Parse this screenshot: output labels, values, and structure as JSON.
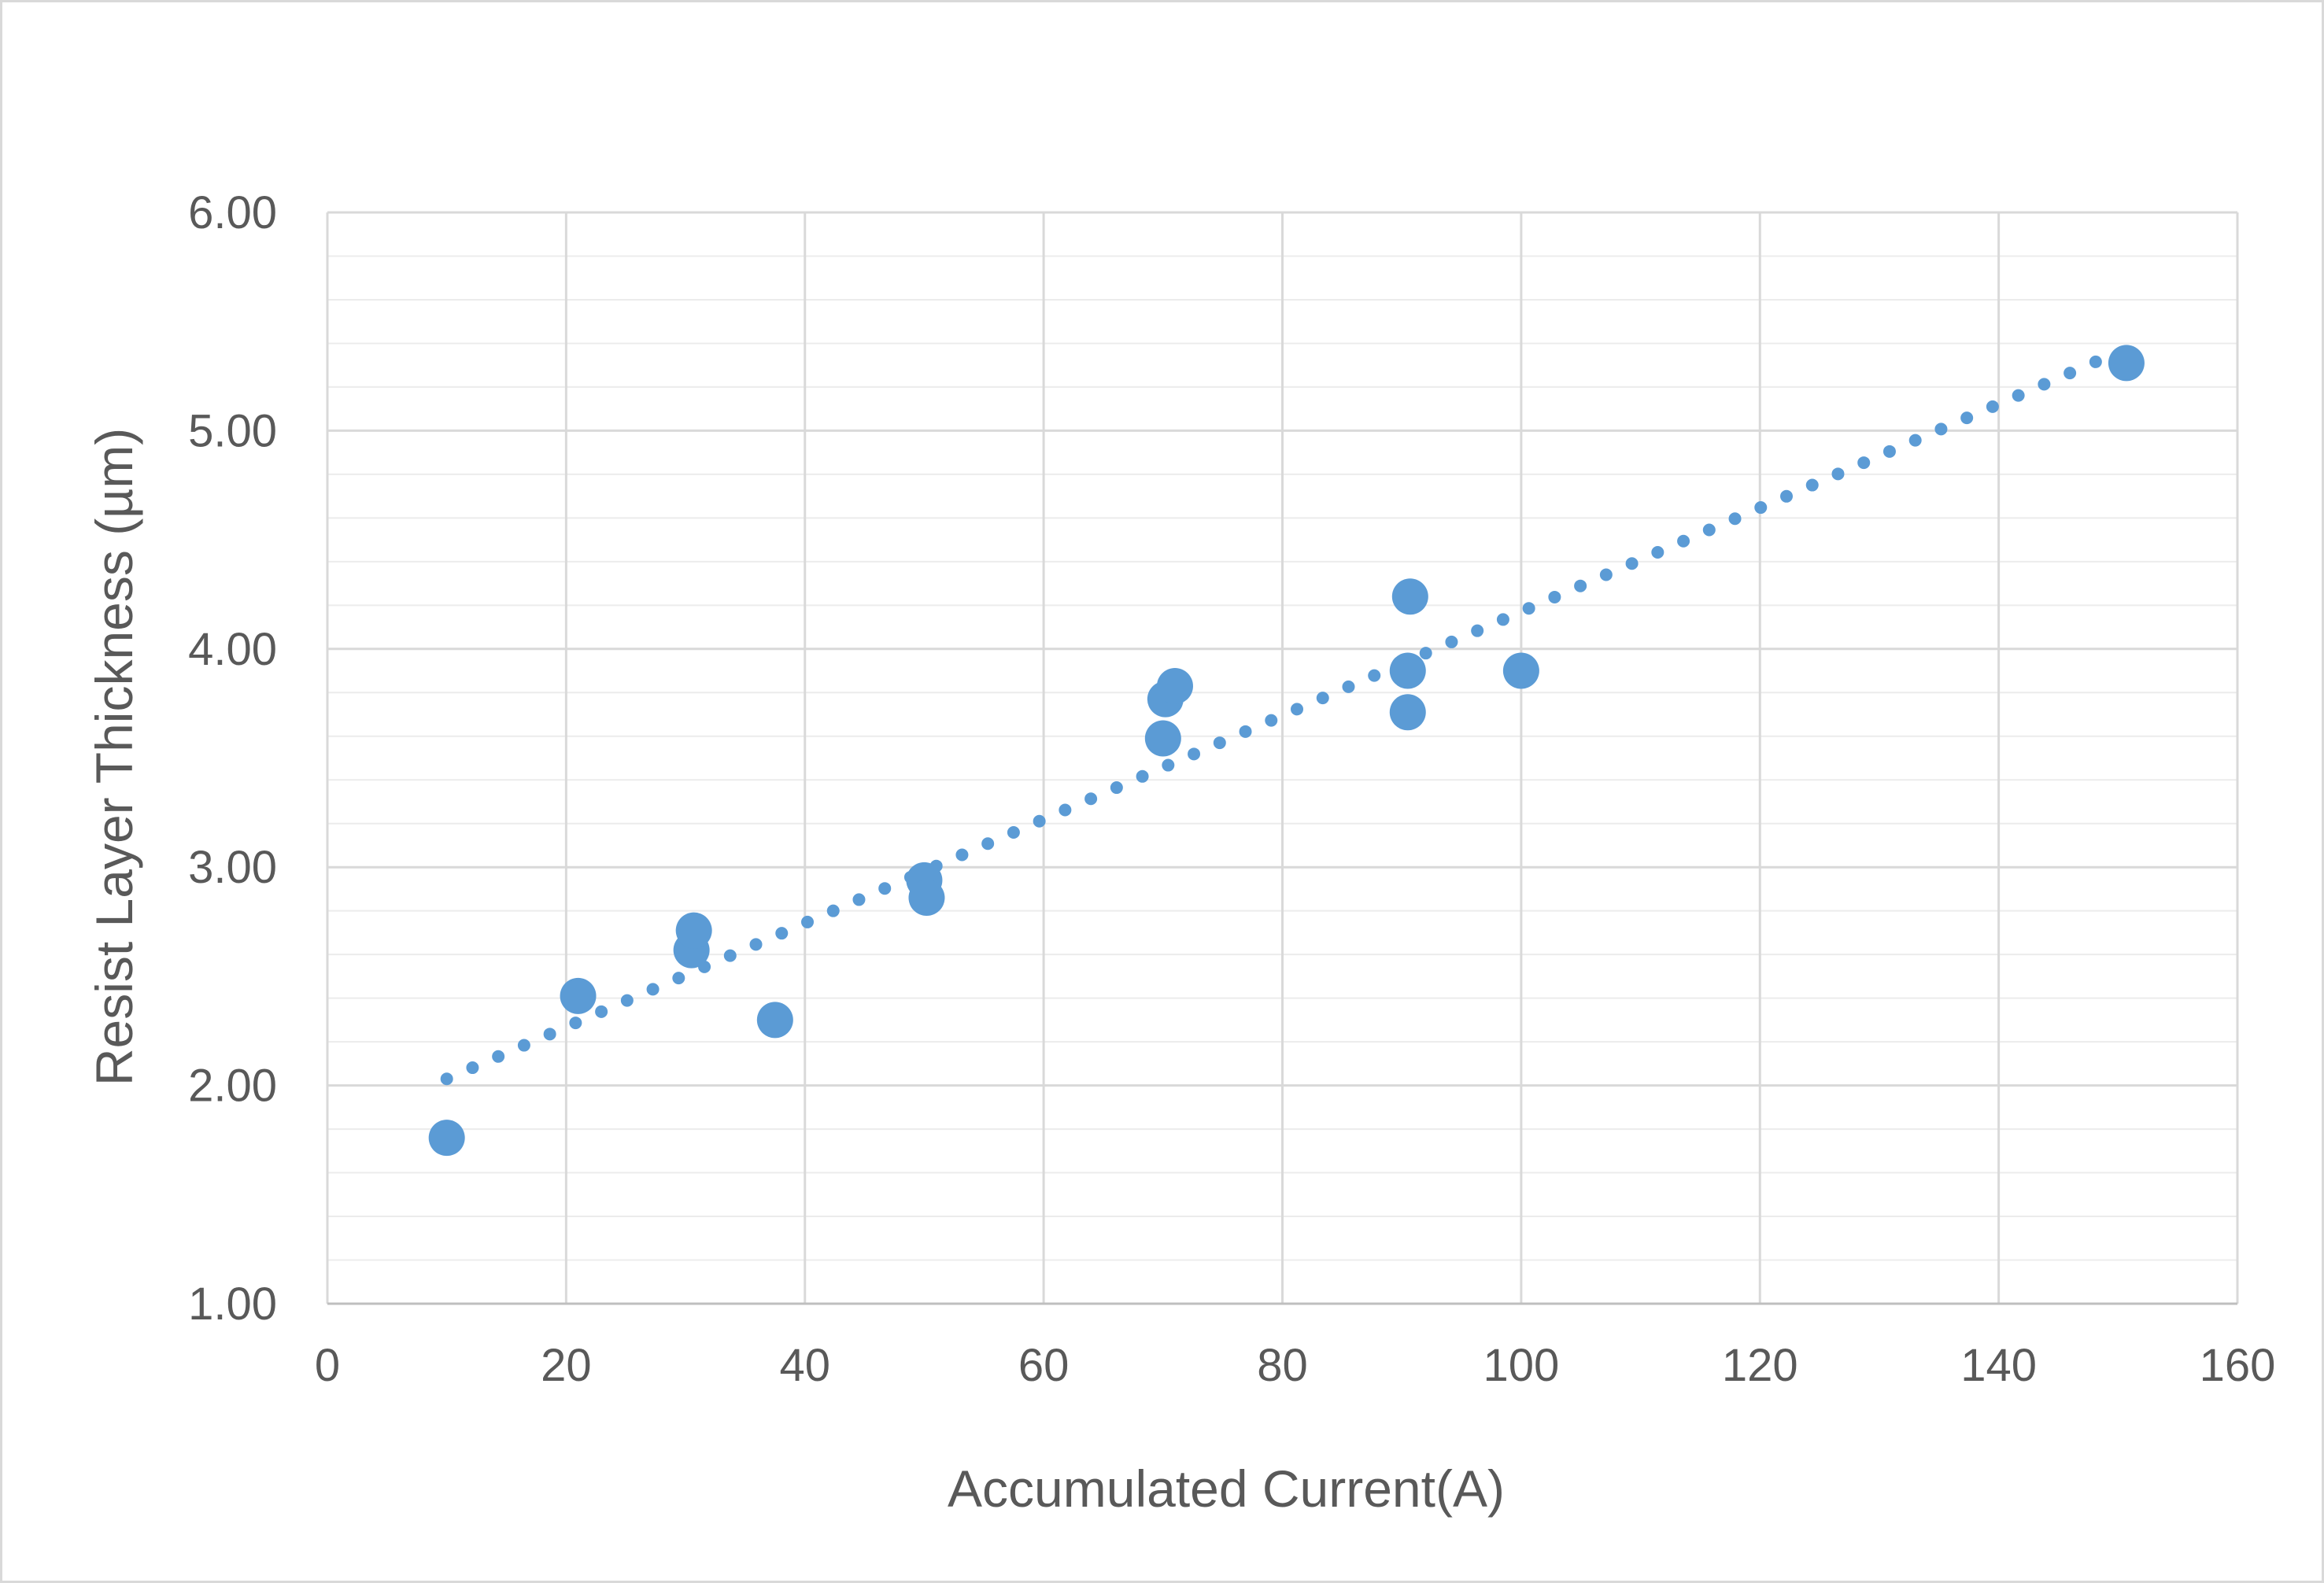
{
  "chart_data": {
    "type": "scatter",
    "title": "",
    "xlabel": "Accumulated Current(A)",
    "ylabel": "Resist Layer Thickness (µm)",
    "xlim": [
      0,
      160
    ],
    "ylim": [
      1.0,
      6.0
    ],
    "x_ticks": [
      0,
      20,
      40,
      60,
      80,
      100,
      120,
      140,
      160
    ],
    "x_tick_labels": [
      "0",
      "20",
      "40",
      "60",
      "80",
      "100",
      "120",
      "140",
      "160"
    ],
    "y_ticks": [
      1.0,
      2.0,
      3.0,
      4.0,
      5.0,
      6.0
    ],
    "y_tick_labels": [
      "1.00",
      "2.00",
      "3.00",
      "4.00",
      "5.00",
      "6.00"
    ],
    "y_minor_step": 0.2,
    "grid": true,
    "legend": "none",
    "colors": {
      "points": "#5b9bd5",
      "grid_major": "#d9d9d9",
      "grid_minor": "#ececec",
      "text": "#595959"
    },
    "series": [
      {
        "kind": "points",
        "x": [
          10,
          21,
          30.5,
          30.7,
          37.5,
          50,
          50.2,
          70,
          70.2,
          71,
          90.5,
          90.5,
          90.7,
          100,
          150.7
        ],
        "y": [
          1.76,
          2.41,
          2.62,
          2.71,
          2.3,
          2.94,
          2.86,
          3.59,
          3.77,
          3.83,
          3.9,
          3.71,
          4.24,
          3.9,
          5.31
        ]
      },
      {
        "kind": "trendline",
        "style": "dotted",
        "x": [
          10,
          150
        ],
        "y": [
          2.03,
          5.36
        ]
      }
    ]
  }
}
